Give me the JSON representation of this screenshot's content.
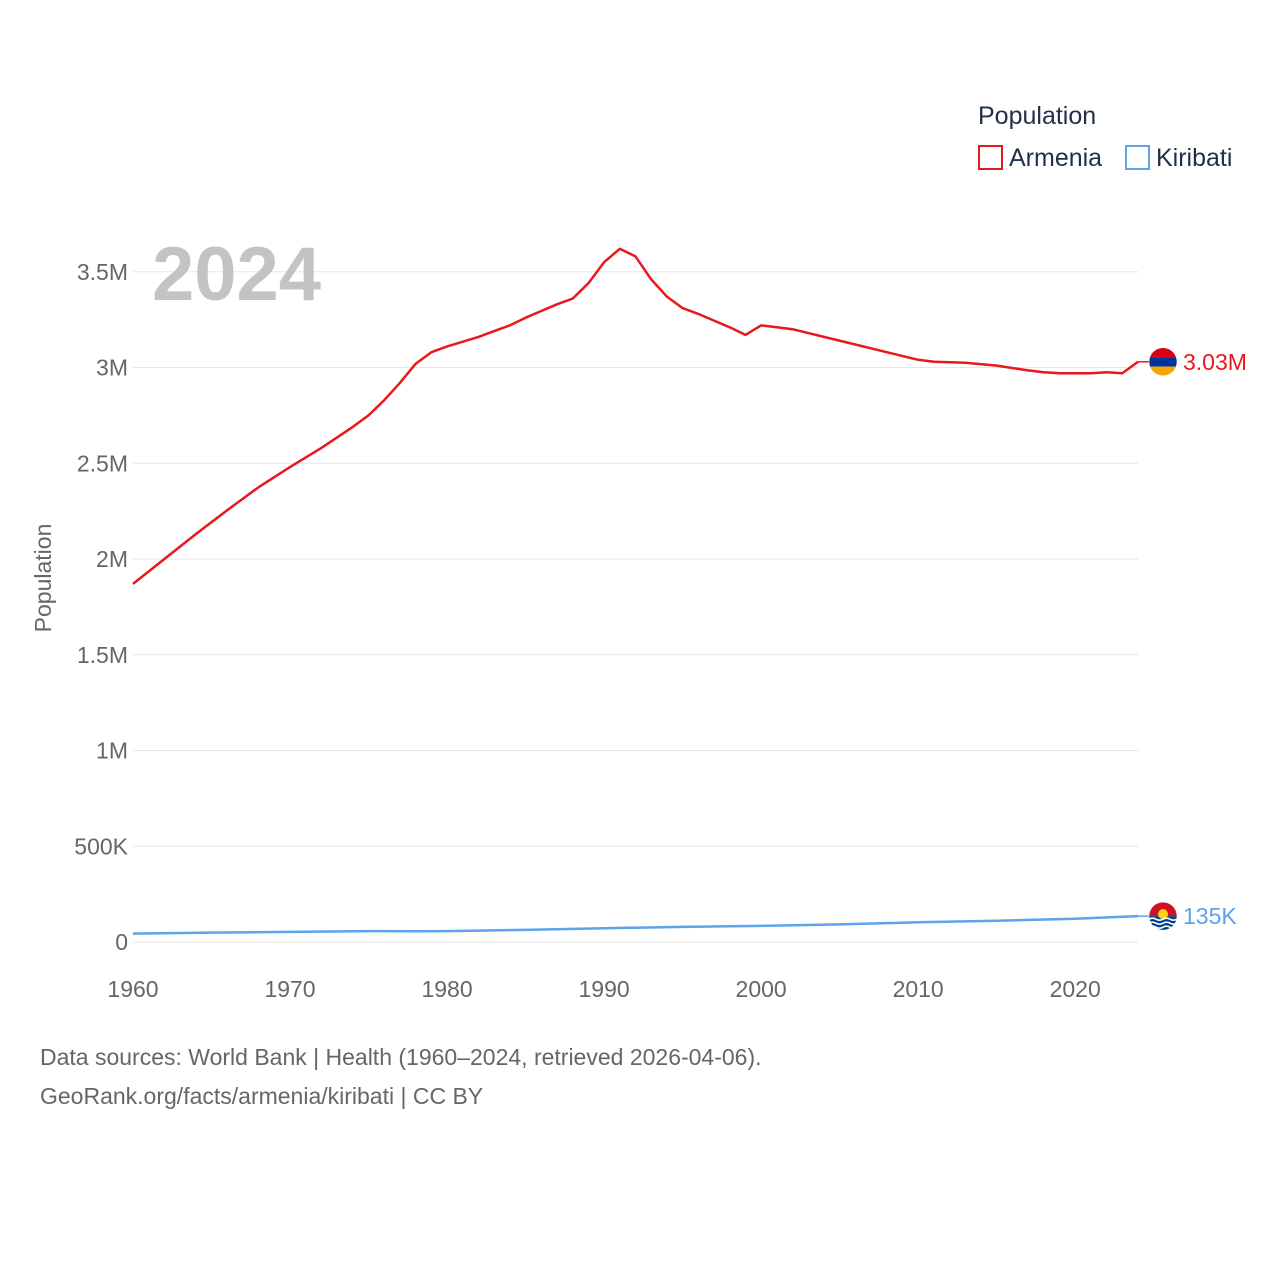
{
  "chart_data": {
    "type": "line",
    "year_label": "2024",
    "ylabel": "Population",
    "xlim": [
      1960,
      2024
    ],
    "ylim": [
      0,
      3700000
    ],
    "x_ticks": [
      1960,
      1970,
      1980,
      1990,
      2000,
      2010,
      2020
    ],
    "x_tick_labels": [
      "1960",
      "1970",
      "1980",
      "1990",
      "2000",
      "2010",
      "2020"
    ],
    "y_ticks": [
      0,
      500000,
      1000000,
      1500000,
      2000000,
      2500000,
      3000000,
      3500000
    ],
    "y_tick_labels": [
      "0",
      "500K",
      "1M",
      "1.5M",
      "2M",
      "2.5M",
      "3M",
      "3.5M"
    ],
    "grid": true,
    "legend": {
      "title": "Population",
      "position": "top-right",
      "items": [
        {
          "name": "Armenia",
          "color": "#e8191c"
        },
        {
          "name": "Kiribati",
          "color": "#5ba3ea"
        }
      ]
    },
    "series": [
      {
        "name": "Armenia",
        "color": "#e8191c",
        "end_label": "3.03M",
        "flag": "armenia-flag-icon",
        "x": [
          1960,
          1962,
          1964,
          1966,
          1968,
          1970,
          1972,
          1974,
          1975,
          1976,
          1977,
          1978,
          1979,
          1980,
          1982,
          1983,
          1984,
          1985,
          1986,
          1987,
          1988,
          1989,
          1990,
          1991,
          1992,
          1993,
          1994,
          1995,
          1996,
          1997,
          1998,
          1999,
          2000,
          2001,
          2002,
          2004,
          2006,
          2008,
          2010,
          2011,
          2013,
          2015,
          2017,
          2018,
          2019,
          2020,
          2021,
          2022,
          2023,
          2024
        ],
        "values": [
          1870000,
          2000000,
          2130000,
          2255000,
          2375000,
          2480000,
          2580000,
          2690000,
          2750000,
          2830000,
          2920000,
          3020000,
          3080000,
          3110000,
          3160000,
          3190000,
          3220000,
          3260000,
          3295000,
          3330000,
          3360000,
          3440000,
          3550000,
          3620000,
          3580000,
          3460000,
          3370000,
          3310000,
          3280000,
          3245000,
          3210000,
          3170000,
          3220000,
          3210000,
          3200000,
          3160000,
          3120000,
          3080000,
          3040000,
          3030000,
          3025000,
          3010000,
          2985000,
          2975000,
          2970000,
          2970000,
          2970000,
          2975000,
          2970000,
          3030000
        ]
      },
      {
        "name": "Kiribati",
        "color": "#5ba3ea",
        "end_label": "135K",
        "flag": "kiribati-flag-icon",
        "x": [
          1960,
          1965,
          1970,
          1975,
          1978,
          1980,
          1985,
          1990,
          1995,
          2000,
          2005,
          2010,
          2015,
          2020,
          2024
        ],
        "values": [
          44000,
          49000,
          53000,
          57000,
          56000,
          57000,
          63000,
          72000,
          79000,
          84000,
          92000,
          103000,
          111000,
          121000,
          135000
        ]
      }
    ]
  },
  "footer": {
    "line1": "Data sources: World Bank | Health (1960–2024, retrieved 2026-04-06).",
    "line2": "GeoRank.org/facts/armenia/kiribati | CC BY"
  }
}
